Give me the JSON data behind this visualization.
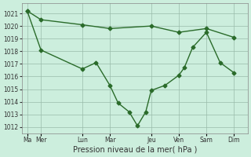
{
  "xlabel": "Pression niveau de la mer( hPa )",
  "bg_color": "#cceedd",
  "grid_color": "#99bbaa",
  "line_color": "#2a6b2a",
  "ylim": [
    1011.5,
    1021.8
  ],
  "yticks": [
    1012,
    1013,
    1014,
    1015,
    1016,
    1017,
    1018,
    1019,
    1020,
    1021
  ],
  "xtick_labels": [
    "Ma",
    "Mer",
    "Lun",
    "Mar",
    "Jeu",
    "Ven",
    "Sam",
    "Dim"
  ],
  "xtick_positions": [
    0,
    0.5,
    2,
    3,
    4.5,
    5.5,
    6.5,
    7.5
  ],
  "xlim": [
    -0.2,
    8.0
  ],
  "line1_x": [
    0,
    0.5,
    2,
    3,
    4.5,
    5.5,
    6.5,
    7.5
  ],
  "line1_y": [
    1021.2,
    1020.5,
    1020.1,
    1019.8,
    1020.0,
    1019.5,
    1019.8,
    1019.1
  ],
  "line2_x": [
    0,
    0.5,
    2,
    2.5,
    3,
    3.3,
    3.7,
    4.0,
    4.3,
    4.5,
    5.0,
    5.5,
    5.7,
    6.0,
    6.5,
    7.0,
    7.5
  ],
  "line2_y": [
    1021.2,
    1018.1,
    1016.6,
    1017.1,
    1015.3,
    1013.9,
    1013.2,
    1012.1,
    1013.2,
    1014.9,
    1015.3,
    1016.1,
    1016.7,
    1018.3,
    1019.5,
    1017.1,
    1016.3
  ],
  "marker_size": 2.5,
  "line_width": 1.0,
  "tick_fontsize": 5.5,
  "xlabel_fontsize": 7
}
